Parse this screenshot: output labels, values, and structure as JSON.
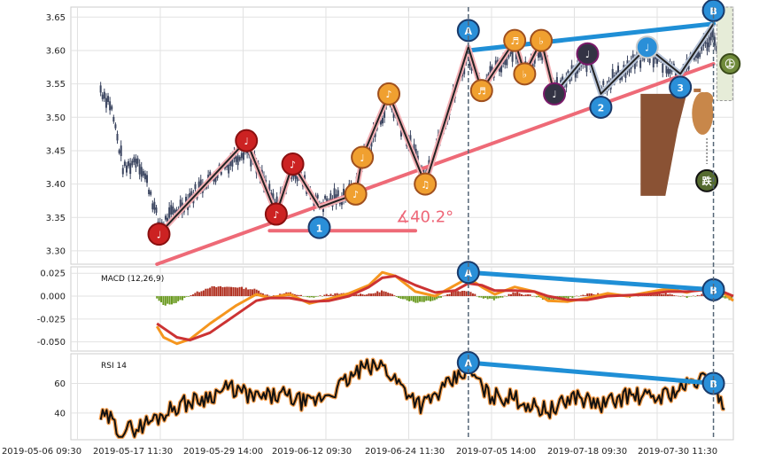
{
  "chart_data": {
    "type": "line",
    "title": "",
    "colors": {
      "trend_pink": "#ee6a77",
      "divergence_blue": "#1f8fd6",
      "macd_orange": "#f5961e",
      "macd_red": "#cc3333",
      "rsi_black": "#111111",
      "rsi_glow": "#f5a050",
      "candle": "#3b4560",
      "pattern_red": "#cc2222",
      "pattern_orange": "#f0a030",
      "pattern_dark": "#333344",
      "marker_blue": "#2a8fd8",
      "hist_red": "#b03020",
      "hist_green": "#6a9a20"
    },
    "x_tick_labels": [
      "2019-05-06 09:30",
      "2019-05-17 11:30",
      "2019-05-29 14:00",
      "2019-06-12 09:30",
      "2019-06-24 11:30",
      "2019-07-05 14:00",
      "2019-07-18 09:30",
      "2019-07-30 11:30"
    ],
    "price_panel": {
      "ylim": [
        3.28,
        3.665
      ],
      "yticks": [
        "3.30",
        "3.35",
        "3.40",
        "3.45",
        "3.50",
        "3.55",
        "3.60",
        "3.65"
      ],
      "zigzag_red": [
        [
          0.133,
          3.325
        ],
        [
          0.265,
          3.465
        ],
        [
          0.31,
          3.355
        ],
        [
          0.335,
          3.43
        ],
        [
          0.375,
          3.365
        ]
      ],
      "zigzag_orange": [
        [
          0.375,
          3.365
        ],
        [
          0.43,
          3.385
        ],
        [
          0.44,
          3.44
        ],
        [
          0.48,
          3.535
        ],
        [
          0.535,
          3.4
        ],
        [
          0.6,
          3.605
        ],
        [
          0.62,
          3.54
        ],
        [
          0.67,
          3.615
        ],
        [
          0.685,
          3.565
        ],
        [
          0.71,
          3.615
        ],
        [
          0.73,
          3.535
        ]
      ],
      "zigzag_dark": [
        [
          0.73,
          3.535
        ],
        [
          0.78,
          3.595
        ],
        [
          0.8,
          3.535
        ],
        [
          0.87,
          3.605
        ],
        [
          0.92,
          3.565
        ],
        [
          0.97,
          3.64
        ]
      ],
      "trend_line_lower": [
        [
          0.13,
          3.28
        ],
        [
          0.97,
          3.58
        ]
      ],
      "trend_line_upper": [
        [
          0.6,
          3.6
        ],
        [
          0.97,
          3.64
        ]
      ],
      "angle_line": [
        [
          0.3,
          3.33
        ],
        [
          0.52,
          3.33
        ]
      ],
      "angle_label": "∡40.2°",
      "pattern_markers": [
        {
          "x": 0.133,
          "y": 3.325,
          "glyph": "♩",
          "style": "red"
        },
        {
          "x": 0.265,
          "y": 3.465,
          "glyph": "♩",
          "style": "red"
        },
        {
          "x": 0.31,
          "y": 3.355,
          "glyph": "♪",
          "style": "red"
        },
        {
          "x": 0.335,
          "y": 3.43,
          "glyph": "♪",
          "style": "red"
        },
        {
          "x": 0.43,
          "y": 3.385,
          "glyph": "♪",
          "style": "orange"
        },
        {
          "x": 0.44,
          "y": 3.44,
          "glyph": "♩",
          "style": "orange"
        },
        {
          "x": 0.48,
          "y": 3.535,
          "glyph": "♪",
          "style": "orange"
        },
        {
          "x": 0.535,
          "y": 3.4,
          "glyph": "♫",
          "style": "orange"
        },
        {
          "x": 0.62,
          "y": 3.54,
          "glyph": "♬",
          "style": "orange"
        },
        {
          "x": 0.67,
          "y": 3.615,
          "glyph": "♬",
          "style": "orange"
        },
        {
          "x": 0.685,
          "y": 3.565,
          "glyph": "♭",
          "style": "orange"
        },
        {
          "x": 0.71,
          "y": 3.615,
          "glyph": "♭",
          "style": "orange"
        },
        {
          "x": 0.73,
          "y": 3.535,
          "glyph": "♩",
          "style": "dark"
        },
        {
          "x": 0.78,
          "y": 3.595,
          "glyph": "♩",
          "style": "dark"
        },
        {
          "x": 0.87,
          "y": 3.605,
          "glyph": "♩",
          "style": "blue"
        }
      ],
      "wave_markers": [
        {
          "x": 0.375,
          "y": 3.335,
          "label": "1"
        },
        {
          "x": 0.8,
          "y": 3.515,
          "label": "2"
        },
        {
          "x": 0.92,
          "y": 3.545,
          "label": "3"
        },
        {
          "x": 0.6,
          "y": 3.63,
          "label": "A"
        },
        {
          "x": 0.97,
          "y": 3.66,
          "label": "B"
        }
      ],
      "badge": {
        "x": 0.995,
        "y": 3.58,
        "glyph": "㊤"
      },
      "rope_badge": {
        "x": 0.96,
        "y": 3.405,
        "glyph": "跌"
      }
    },
    "macd_panel": {
      "label": "MACD (12,26,9)",
      "ylim": [
        -0.06,
        0.032
      ],
      "yticks": [
        "0.025",
        "0.000",
        "-0.025",
        "-0.050"
      ],
      "divergence_line": [
        [
          0.6,
          0.026
        ],
        [
          0.97,
          0.007
        ]
      ],
      "divergence_markers": [
        {
          "x": 0.6,
          "y": 0.026,
          "label": "A"
        },
        {
          "x": 0.97,
          "y": 0.007,
          "label": "B"
        }
      ],
      "macd_series": [
        [
          0.13,
          -0.033
        ],
        [
          0.14,
          -0.045
        ],
        [
          0.16,
          -0.052
        ],
        [
          0.18,
          -0.047
        ],
        [
          0.21,
          -0.03
        ],
        [
          0.25,
          -0.01
        ],
        [
          0.28,
          0.002
        ],
        [
          0.3,
          -0.002
        ],
        [
          0.33,
          0.002
        ],
        [
          0.36,
          -0.008
        ],
        [
          0.39,
          -0.003
        ],
        [
          0.42,
          0.003
        ],
        [
          0.45,
          0.012
        ],
        [
          0.47,
          0.026
        ],
        [
          0.49,
          0.022
        ],
        [
          0.52,
          0.005
        ],
        [
          0.55,
          0.0
        ],
        [
          0.58,
          0.012
        ],
        [
          0.6,
          0.02
        ],
        [
          0.62,
          0.01
        ],
        [
          0.64,
          0.002
        ],
        [
          0.67,
          0.01
        ],
        [
          0.7,
          0.005
        ],
        [
          0.72,
          -0.005
        ],
        [
          0.75,
          -0.006
        ],
        [
          0.78,
          -0.002
        ],
        [
          0.81,
          0.003
        ],
        [
          0.84,
          0.0
        ],
        [
          0.87,
          0.004
        ],
        [
          0.9,
          0.008
        ],
        [
          0.93,
          0.004
        ],
        [
          0.96,
          0.01
        ],
        [
          0.98,
          0.006
        ],
        [
          1.0,
          -0.005
        ]
      ],
      "signal_series": [
        [
          0.13,
          -0.03
        ],
        [
          0.14,
          -0.035
        ],
        [
          0.16,
          -0.045
        ],
        [
          0.18,
          -0.048
        ],
        [
          0.21,
          -0.04
        ],
        [
          0.25,
          -0.02
        ],
        [
          0.28,
          -0.005
        ],
        [
          0.3,
          -0.002
        ],
        [
          0.33,
          -0.002
        ],
        [
          0.36,
          -0.006
        ],
        [
          0.39,
          -0.005
        ],
        [
          0.42,
          0.0
        ],
        [
          0.45,
          0.01
        ],
        [
          0.47,
          0.02
        ],
        [
          0.49,
          0.022
        ],
        [
          0.52,
          0.012
        ],
        [
          0.55,
          0.004
        ],
        [
          0.58,
          0.006
        ],
        [
          0.6,
          0.014
        ],
        [
          0.62,
          0.012
        ],
        [
          0.64,
          0.006
        ],
        [
          0.67,
          0.006
        ],
        [
          0.7,
          0.005
        ],
        [
          0.72,
          0.0
        ],
        [
          0.75,
          -0.004
        ],
        [
          0.78,
          -0.004
        ],
        [
          0.81,
          0.0
        ],
        [
          0.84,
          0.001
        ],
        [
          0.87,
          0.002
        ],
        [
          0.9,
          0.005
        ],
        [
          0.93,
          0.005
        ],
        [
          0.96,
          0.007
        ],
        [
          0.98,
          0.006
        ],
        [
          1.0,
          0.0
        ]
      ]
    },
    "rsi_panel": {
      "label": "RSI 14",
      "ylim": [
        22,
        80
      ],
      "yticks": [
        "60",
        "40"
      ],
      "divergence_line": [
        [
          0.6,
          74
        ],
        [
          0.97,
          60
        ]
      ],
      "divergence_markers": [
        {
          "x": 0.6,
          "y": 74,
          "label": "A"
        },
        {
          "x": 0.97,
          "y": 60,
          "label": "B"
        }
      ]
    },
    "vertical_dashed_lines_x": [
      0.6,
      0.97
    ]
  }
}
